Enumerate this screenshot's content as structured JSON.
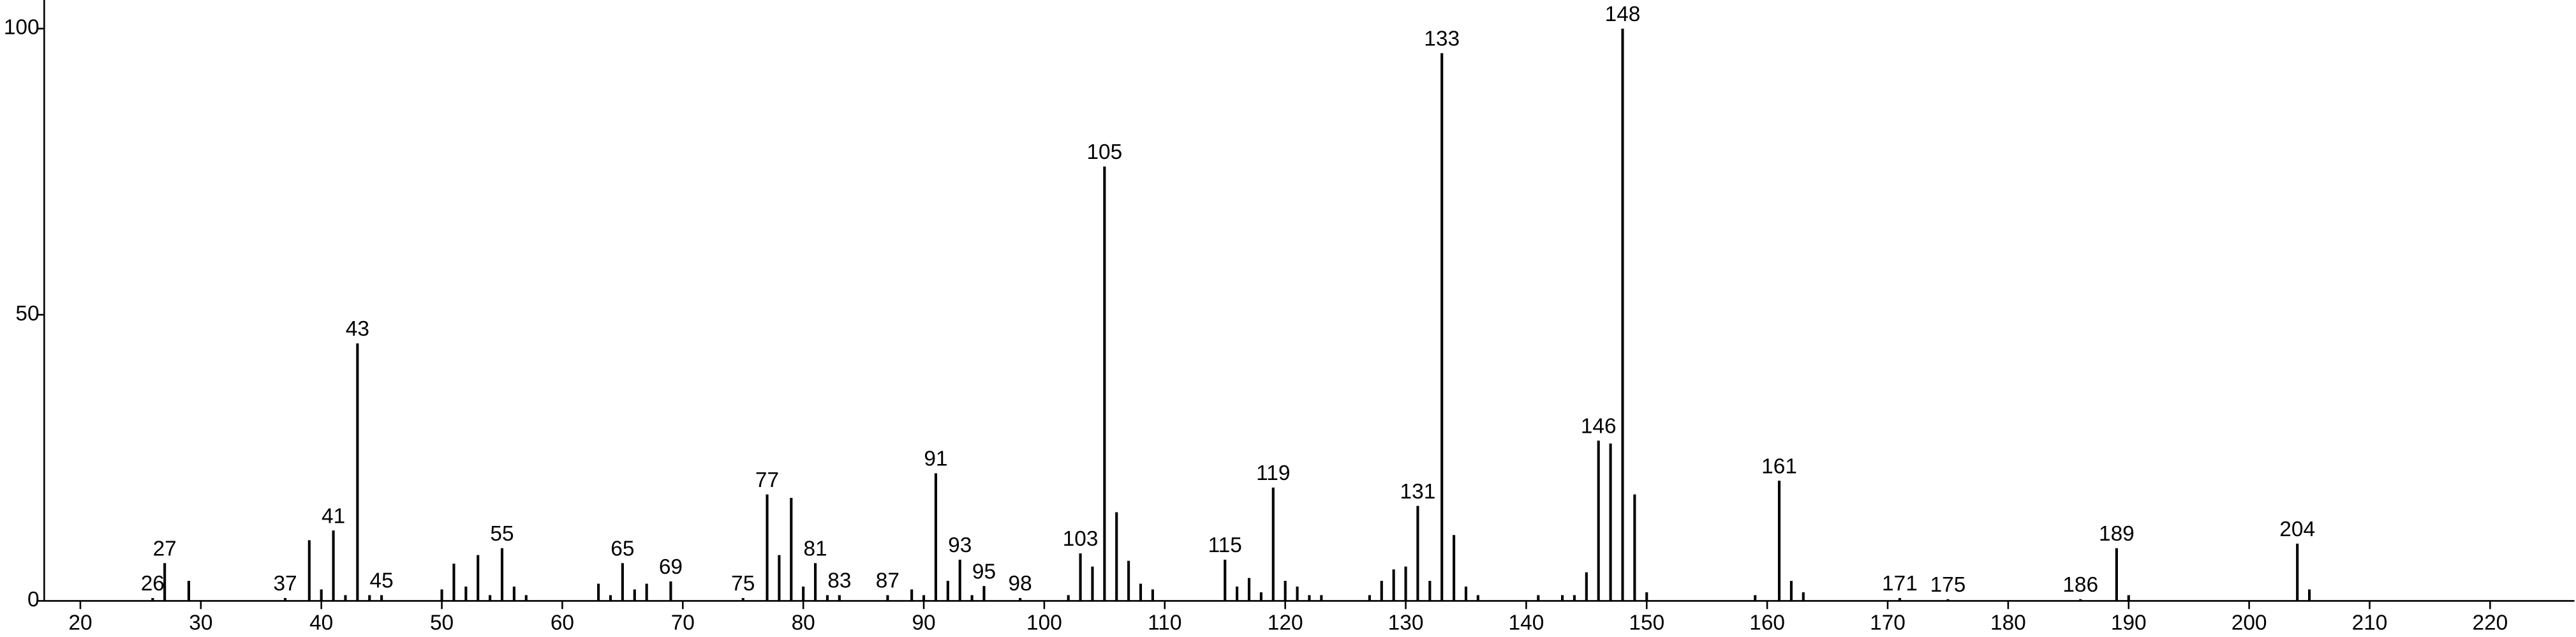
{
  "chart_data": {
    "type": "stick",
    "x": [
      26,
      27,
      29,
      37,
      39,
      40,
      41,
      42,
      43,
      44,
      45,
      50,
      51,
      52,
      53,
      54,
      55,
      56,
      57,
      63,
      64,
      65,
      66,
      67,
      69,
      75,
      77,
      78,
      79,
      80,
      81,
      82,
      83,
      87,
      89,
      90,
      91,
      92,
      93,
      94,
      95,
      98,
      102,
      103,
      104,
      105,
      106,
      107,
      108,
      109,
      115,
      116,
      117,
      118,
      119,
      120,
      121,
      122,
      123,
      127,
      128,
      129,
      130,
      131,
      132,
      133,
      134,
      135,
      136,
      141,
      143,
      144,
      145,
      146,
      147,
      148,
      149,
      150,
      159,
      161,
      162,
      163,
      171,
      175,
      186,
      189,
      190,
      204,
      205
    ],
    "values": [
      0.5,
      6.6,
      3.5,
      0.5,
      10.6,
      2,
      12.3,
      1,
      45,
      1,
      1,
      2,
      6.5,
      2.5,
      8,
      1,
      9.2,
      2.5,
      1,
      3,
      1,
      6.6,
      2,
      3,
      3.4,
      0.5,
      18.6,
      8,
      18,
      2.5,
      6.6,
      1,
      1,
      1,
      2,
      1,
      22.3,
      3.5,
      7.2,
      1,
      2.6,
      0.5,
      1,
      8.3,
      6,
      75.9,
      15.5,
      7,
      3,
      2,
      7.2,
      2.5,
      4,
      1.5,
      19.8,
      3.5,
      2.5,
      1,
      1,
      1,
      3.5,
      5.5,
      6,
      16.6,
      3.5,
      95.7,
      11.5,
      2.5,
      1,
      1,
      1,
      1,
      5,
      28,
      27.5,
      100,
      18.6,
      1.5,
      1,
      21,
      3.5,
      1.5,
      0.5,
      0.3,
      0.3,
      9.2,
      1,
      10,
      2
    ],
    "peak_labels": [
      "26",
      "27",
      null,
      "37",
      null,
      null,
      "41",
      null,
      "43",
      null,
      "45",
      null,
      null,
      null,
      null,
      null,
      "55",
      null,
      null,
      null,
      null,
      "65",
      null,
      null,
      "69",
      "75",
      "77",
      null,
      null,
      null,
      "81",
      null,
      "83",
      "87",
      null,
      null,
      "91",
      null,
      "93",
      null,
      "95",
      "98",
      null,
      "103",
      null,
      "105",
      null,
      null,
      null,
      null,
      "115",
      null,
      null,
      null,
      "119",
      null,
      null,
      null,
      null,
      null,
      null,
      null,
      null,
      "131",
      null,
      "133",
      null,
      null,
      null,
      null,
      null,
      null,
      null,
      "146",
      null,
      "148",
      null,
      null,
      null,
      "161",
      null,
      null,
      "171",
      "175",
      "186",
      "189",
      null,
      "204",
      null
    ],
    "color": "#000000",
    "xlim": [
      17,
      227
    ],
    "ylim": [
      0,
      105
    ],
    "xticks": [
      20,
      30,
      40,
      50,
      60,
      70,
      80,
      90,
      100,
      110,
      120,
      130,
      140,
      150,
      160,
      170,
      180,
      190,
      200,
      210,
      220
    ],
    "yticks": [
      0,
      50,
      100
    ]
  }
}
